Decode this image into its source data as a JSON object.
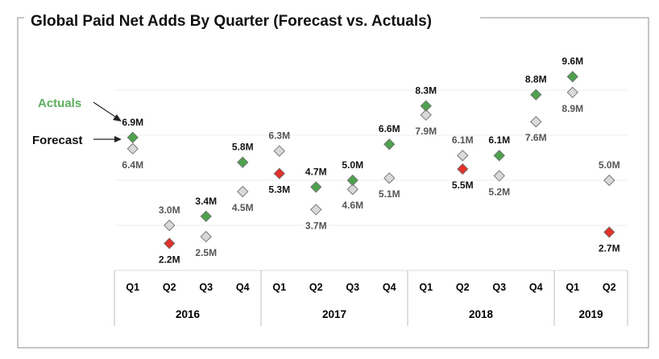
{
  "chart_data": {
    "type": "scatter",
    "title": "Global Paid Net Adds By Quarter (Forecast vs. Actuals)",
    "unit": "M",
    "categories": [
      "Q1",
      "Q2",
      "Q3",
      "Q4",
      "Q1",
      "Q2",
      "Q3",
      "Q4",
      "Q1",
      "Q2",
      "Q3",
      "Q4",
      "Q1",
      "Q2"
    ],
    "years": [
      {
        "label": "2016",
        "count": 4
      },
      {
        "label": "2017",
        "count": 4
      },
      {
        "label": "2018",
        "count": 4
      },
      {
        "label": "2019",
        "count": 2
      }
    ],
    "series": [
      {
        "name": "Forecast",
        "color": "#d9d9d9",
        "values": [
          6.4,
          3.0,
          2.5,
          4.5,
          6.3,
          3.7,
          4.6,
          5.1,
          7.9,
          6.1,
          5.2,
          7.6,
          8.9,
          5.0
        ],
        "labels": [
          "6.4M",
          "3.0M",
          "2.5M",
          "4.5M",
          "6.3M",
          "3.7M",
          "4.6M",
          "5.1M",
          "7.9M",
          "6.1M",
          "5.2M",
          "7.6M",
          "8.9M",
          "5.0M"
        ]
      },
      {
        "name": "Actuals",
        "beat_color": "#4ea24e",
        "miss_color": "#e0322b",
        "values": [
          6.9,
          2.2,
          3.4,
          5.8,
          5.3,
          4.7,
          5.0,
          6.6,
          8.3,
          5.5,
          6.1,
          8.8,
          9.6,
          2.7
        ],
        "labels": [
          "6.9M",
          "2.2M",
          "3.4M",
          "5.8M",
          "5.3M",
          "4.7M",
          "5.0M",
          "6.6M",
          "8.3M",
          "5.5M",
          "6.1M",
          "8.8M",
          "9.6M",
          "2.7M"
        ]
      }
    ],
    "legend": {
      "actuals_label": "Actuals",
      "forecast_label": "Forecast",
      "actuals_color": "#5cae5c",
      "placement": "left"
    },
    "ylim": [
      1,
      11
    ],
    "grid": true
  }
}
